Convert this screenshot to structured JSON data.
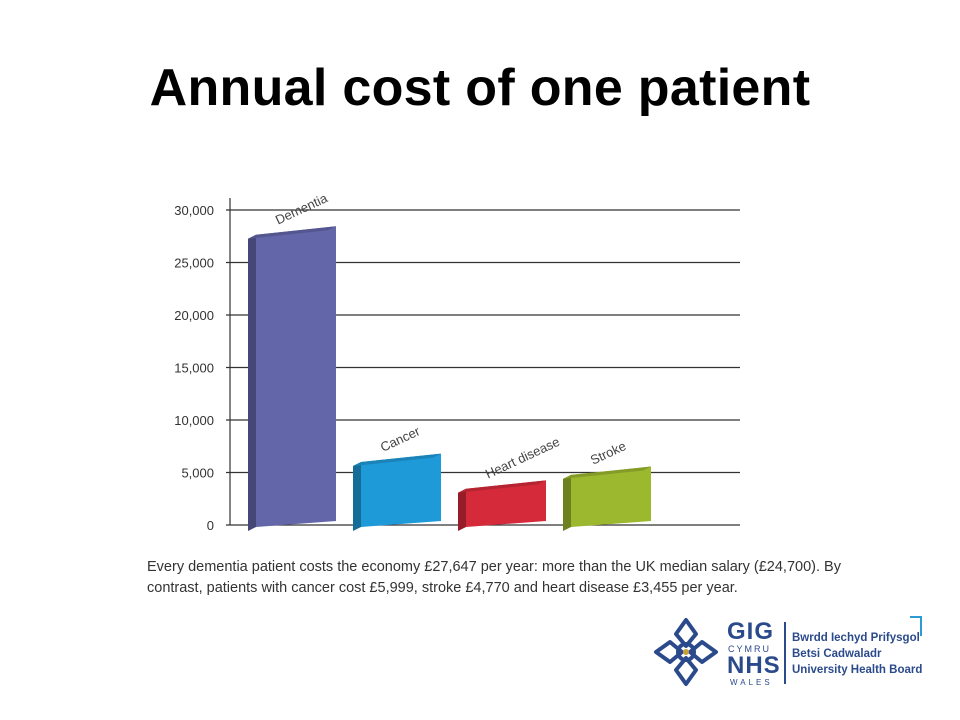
{
  "slide": {
    "title": "Annual cost of one patient",
    "caption": "Every dementia patient costs the economy £27,647 per year: more than the UK median salary (£24,700). By contrast, patients with cancer cost £5,999, stroke £4,770 and heart disease £3,455 per year."
  },
  "chart_data": {
    "type": "bar",
    "categories": [
      "Dementia",
      "Cancer",
      "Heart disease",
      "Stroke"
    ],
    "values": [
      27647,
      5999,
      3455,
      4770
    ],
    "colors": [
      "#6366a8",
      "#1e9ad8",
      "#d42a3a",
      "#9bb82e"
    ],
    "ylim": [
      0,
      30000
    ],
    "yticks": [
      0,
      5000,
      10000,
      15000,
      20000,
      25000,
      30000
    ],
    "ytick_labels": [
      "0",
      "5,000",
      "10,000",
      "15,000",
      "20,000",
      "25,000",
      "30,000"
    ],
    "xlabel": "",
    "ylabel": "",
    "grid": true,
    "style": "3d"
  },
  "logo": {
    "gig": "GIG",
    "cymru": "CYMRU",
    "nhs": "NHS",
    "wales": "WALES",
    "board_line1": "Bwrdd Iechyd Prifysgol",
    "board_line2": "Betsi Cadwaladr",
    "board_line3": "University Health Board",
    "colors": {
      "primary": "#2b4a8c",
      "accent": "#2b9ad6"
    }
  }
}
